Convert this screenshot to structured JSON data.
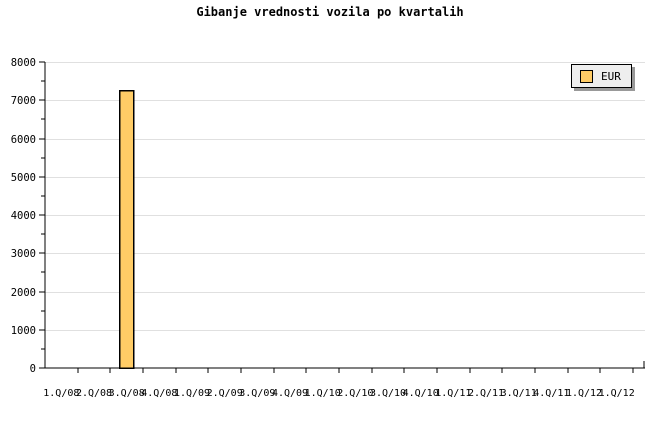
{
  "chart_data": {
    "type": "bar",
    "title": "Gibanje vrednosti vozila po kvartalih",
    "categories": [
      "1.Q/08",
      "2.Q/08",
      "3.Q/08",
      "4.Q/08",
      "1.Q/09",
      "2.Q/09",
      "3.Q/09",
      "4.Q/09",
      "1.Q/10",
      "2.Q/10",
      "3.Q/10",
      "4.Q/10",
      "1.Q/11",
      "2.Q/11",
      "3.Q/11",
      "4.Q/11",
      "1.Q/12",
      "1.Q/12"
    ],
    "series": [
      {
        "name": "EUR",
        "values": [
          null,
          null,
          7250,
          null,
          null,
          null,
          null,
          null,
          null,
          null,
          null,
          null,
          null,
          null,
          null,
          null,
          null,
          null
        ]
      }
    ],
    "xlabel": "",
    "ylabel": "",
    "ylim": [
      0,
      8000
    ],
    "y_major_step": 1000,
    "y_minor_step": 500,
    "y_tick_labels": [
      "0",
      "1000",
      "2000",
      "3000",
      "4000",
      "5000",
      "6000",
      "7000",
      "8000"
    ],
    "grid": "horizontal-major",
    "legend_position": "top-right",
    "colors": {
      "bar_fill": "#FFCC66",
      "bar_border": "#000000",
      "grid_line": "#E0E0E0",
      "axis_line": "#000000",
      "text": "#000000",
      "legend_background": "#EEEEEE",
      "legend_border": "#000000",
      "legend_shadow": "#999999",
      "background": "#FFFFFF"
    }
  }
}
